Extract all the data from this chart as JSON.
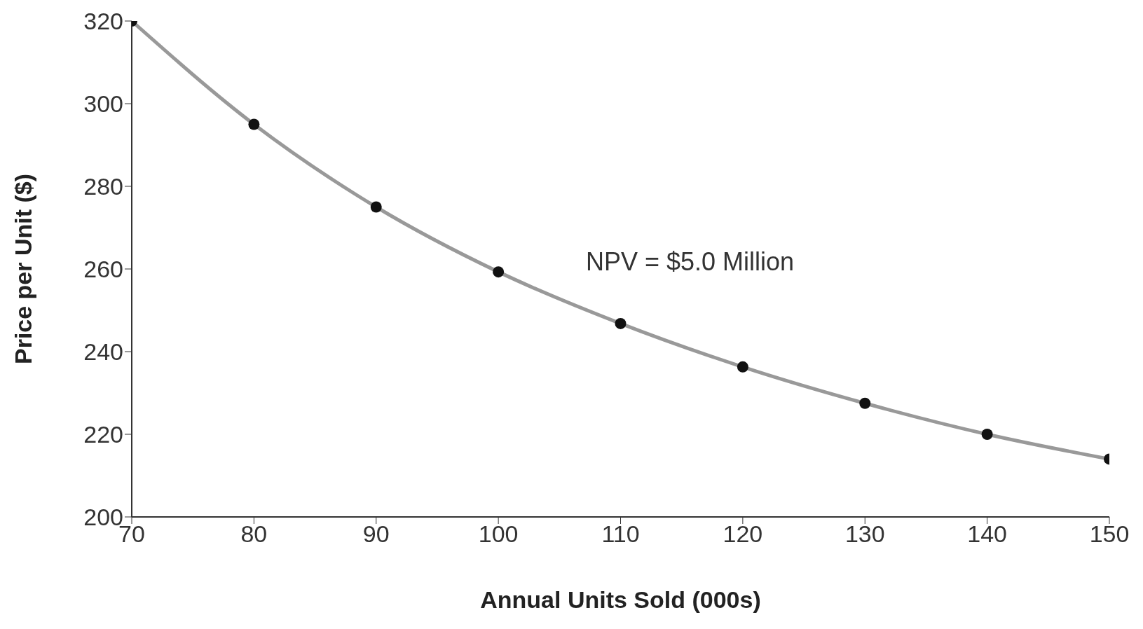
{
  "chart_data": {
    "type": "line",
    "xlabel": "Annual Units Sold (000s)",
    "ylabel": "Price per Unit ($)",
    "annotations": [
      "NPV = $5.0 Million"
    ],
    "x": [
      70,
      80,
      90,
      100,
      110,
      120,
      130,
      140,
      150
    ],
    "series": [
      {
        "color": "#999999",
        "marker": "none",
        "values": [
          320,
          295,
          275,
          259.3,
          246.8,
          236.3,
          227.5,
          220,
          214
        ]
      },
      {
        "type": "scatter",
        "color": "#111111",
        "marker": "circle",
        "values": [
          320,
          295,
          275,
          259.3,
          246.8,
          236.3,
          227.5,
          220,
          214
        ]
      }
    ],
    "xlim": [
      70,
      150
    ],
    "xticks": [
      70,
      80,
      90,
      100,
      110,
      120,
      130,
      140,
      150
    ],
    "ylim": [
      200,
      320
    ],
    "yticks": [
      200,
      220,
      240,
      260,
      280,
      300,
      320
    ],
    "grid": false,
    "legend": false
  }
}
